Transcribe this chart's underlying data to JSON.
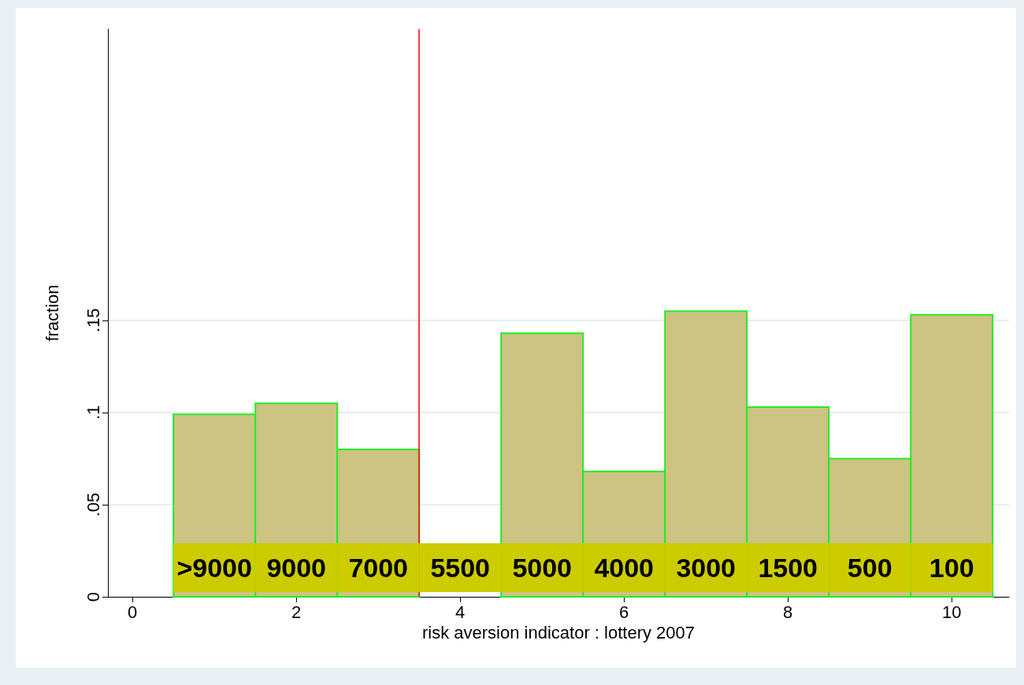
{
  "chart_data": {
    "type": "histogram",
    "xlabel": "risk aversion indicator : lottery 2007",
    "ylabel": "fraction",
    "bins": [
      0.5,
      1.5,
      2.5,
      3.5,
      4.5,
      5.5,
      6.5,
      7.5,
      8.5,
      9.5,
      10.5
    ],
    "values": [
      0.099,
      0.105,
      0.08,
      0,
      0.143,
      0.068,
      0.155,
      0.103,
      0.075,
      0.153
    ],
    "color": "#cdc383",
    "xlim": [
      -0.3,
      10.7
    ],
    "xticks": [
      0,
      2,
      4,
      6,
      8,
      10
    ],
    "ylim": [
      0,
      0.308
    ],
    "yticks": [
      0,
      {
        "value": 0.05,
        "label": ".05"
      },
      {
        "value": 0.1,
        "label": ".1"
      },
      {
        "value": 0.15,
        "label": ".15"
      }
    ],
    "grid": "y",
    "ref_lines": [
      {
        "axis": "x",
        "value": 3.5,
        "color": "#ff0000"
      }
    ],
    "annotations": [
      ">9000",
      "9000",
      "7000",
      "5500",
      "5000",
      "4000",
      "3000",
      "1500",
      "500",
      "100"
    ]
  }
}
